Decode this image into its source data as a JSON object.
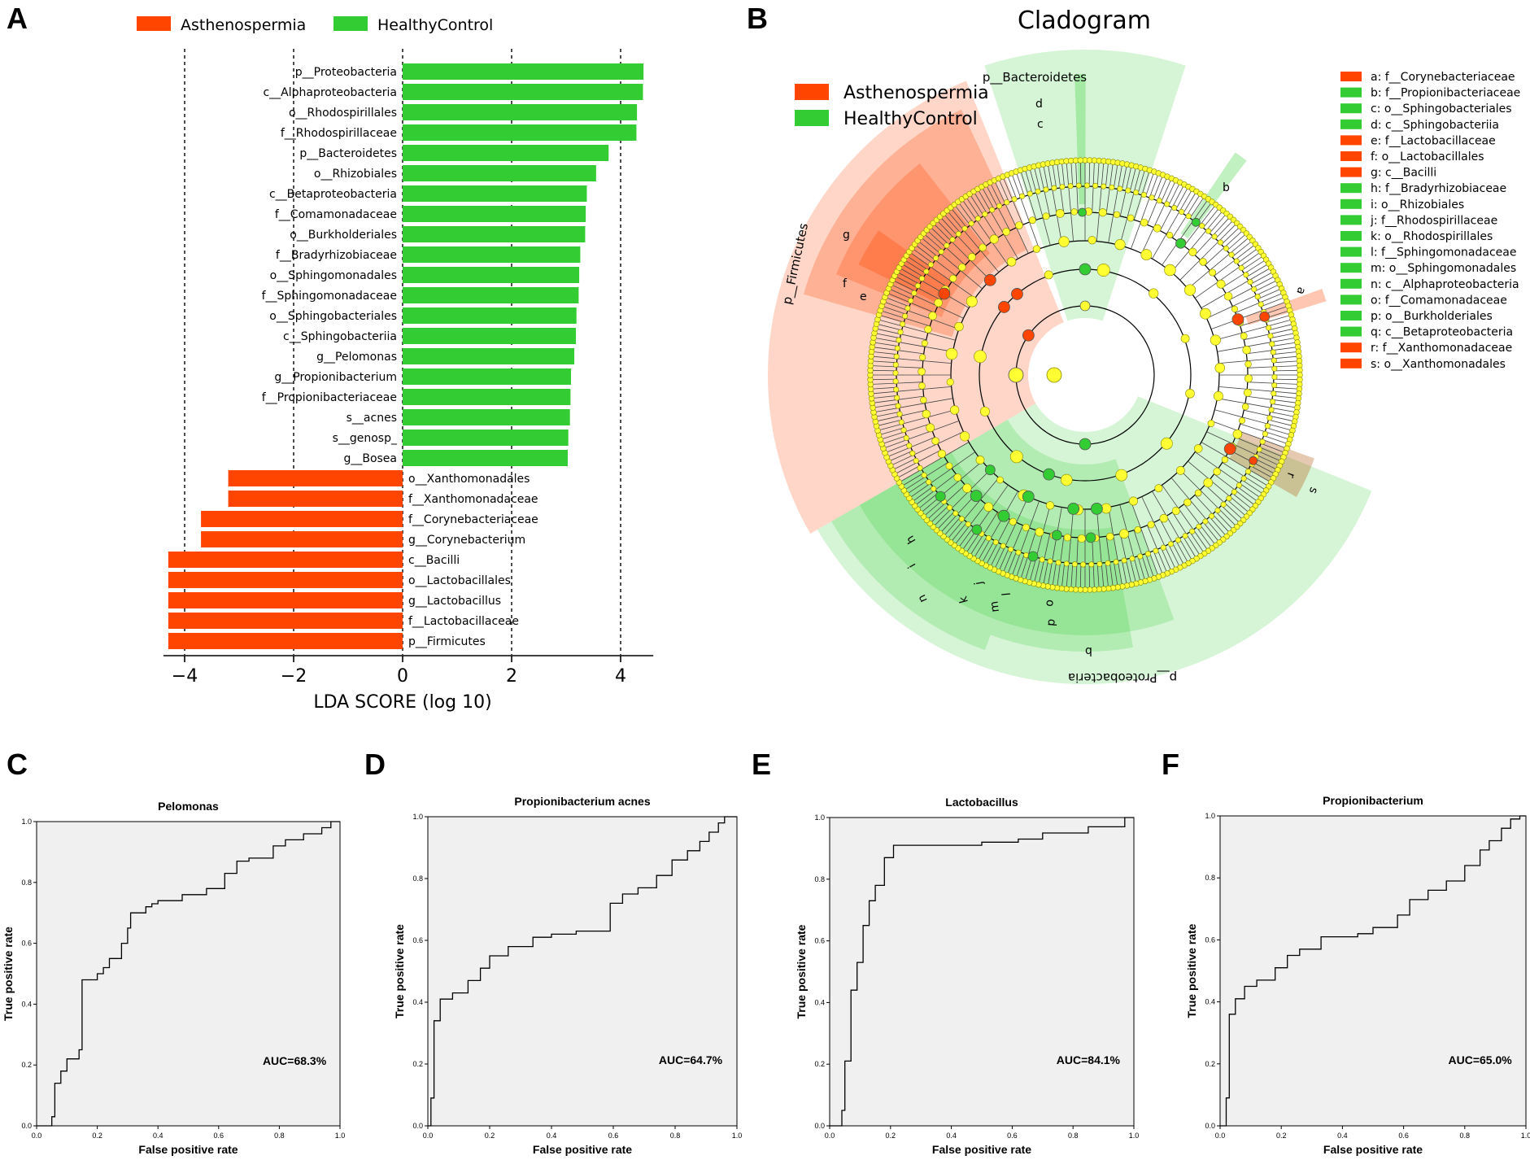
{
  "panel_labels": {
    "a": "A",
    "b": "B",
    "c": "C",
    "d": "D",
    "e": "E",
    "f": "F"
  },
  "colors": {
    "asth": "#ff4500",
    "healthy": "#33cc33",
    "rocfill": "#f0f0f0",
    "node": "#ffff33",
    "grid": "#000000"
  },
  "chart_data": [
    {
      "type": "bar",
      "title": "",
      "xlabel": "LDA SCORE (log 10)",
      "xlim": [
        -4.3,
        4.6
      ],
      "xticks": [
        -4,
        -2,
        0,
        2,
        4
      ],
      "xtick_labels": [
        "−4",
        "−2",
        "0",
        "2",
        "4"
      ],
      "legend": [
        {
          "name": "Asthenospermia",
          "color": "#ff4500"
        },
        {
          "name": "HealthyControl",
          "color": "#33cc33"
        }
      ],
      "series": [
        {
          "name": "HealthyControl",
          "color": "#33cc33",
          "categories": [
            "p__Proteobacteria",
            "c__Alphaproteobacteria",
            "o__Rhodospirillales",
            "f__Rhodospirillaceae",
            "p__Bacteroidetes",
            "o__Rhizobiales",
            "c__Betaproteobacteria",
            "f__Comamonadaceae",
            "o__Burkholderiales",
            "f__Bradyrhizobiaceae",
            "o__Sphingomonadales",
            "f__Sphingomonadaceae",
            "o__Sphingobacteriales",
            "c__Sphingobacteriia",
            "g__Pelomonas",
            "g__Propionibacterium",
            "f__Propionibacteriaceae",
            "s__acnes",
            "s__genosp_",
            "g__Bosea"
          ],
          "values": [
            4.42,
            4.41,
            4.3,
            4.29,
            3.78,
            3.55,
            3.38,
            3.36,
            3.35,
            3.26,
            3.24,
            3.23,
            3.19,
            3.18,
            3.15,
            3.09,
            3.08,
            3.07,
            3.04,
            3.03
          ]
        },
        {
          "name": "Asthenospermia",
          "color": "#ff4500",
          "categories": [
            "o__Xanthomonadales",
            "f__Xanthomonadaceae",
            "f__Corynebacteriaceae",
            "g__Corynebacterium",
            "c__Bacilli",
            "o__Lactobacillales",
            "g__Lactobacillus",
            "f__Lactobacillaceae",
            "p__Firmicutes"
          ],
          "values": [
            -3.2,
            -3.2,
            -3.7,
            -3.7,
            -4.3,
            -4.3,
            -4.3,
            -4.3,
            -4.3
          ]
        }
      ]
    },
    {
      "type": "roc",
      "title": "Pelomonas",
      "xlabel": "False positive rate",
      "ylabel": "True positive rate",
      "xlim": [
        0,
        1
      ],
      "ylim": [
        0,
        1
      ],
      "auc": "AUC=68.3%",
      "ticks": [
        "0.0",
        "0.2",
        "0.4",
        "0.6",
        "0.8",
        "1.0"
      ],
      "x": [
        0,
        0.05,
        0.05,
        0.06,
        0.06,
        0.08,
        0.08,
        0.1,
        0.1,
        0.14,
        0.14,
        0.15,
        0.15,
        0.2,
        0.2,
        0.22,
        0.22,
        0.24,
        0.24,
        0.28,
        0.28,
        0.3,
        0.3,
        0.31,
        0.31,
        0.36,
        0.36,
        0.38,
        0.38,
        0.4,
        0.4,
        0.48,
        0.48,
        0.56,
        0.56,
        0.62,
        0.62,
        0.66,
        0.66,
        0.7,
        0.7,
        0.78,
        0.78,
        0.82,
        0.82,
        0.88,
        0.88,
        0.94,
        0.94,
        0.97,
        0.97,
        1.0
      ],
      "y": [
        0,
        0,
        0.03,
        0.03,
        0.14,
        0.14,
        0.18,
        0.18,
        0.22,
        0.22,
        0.25,
        0.25,
        0.48,
        0.48,
        0.5,
        0.5,
        0.52,
        0.52,
        0.55,
        0.55,
        0.6,
        0.6,
        0.65,
        0.65,
        0.7,
        0.7,
        0.72,
        0.72,
        0.73,
        0.73,
        0.74,
        0.74,
        0.76,
        0.76,
        0.78,
        0.78,
        0.83,
        0.83,
        0.87,
        0.87,
        0.88,
        0.88,
        0.92,
        0.92,
        0.94,
        0.94,
        0.96,
        0.96,
        0.98,
        0.98,
        1.0,
        1.0
      ]
    },
    {
      "type": "roc",
      "title": "Propionibacterium acnes",
      "xlabel": "False positive rate",
      "ylabel": "True positive rate",
      "xlim": [
        0,
        1
      ],
      "ylim": [
        0,
        1
      ],
      "auc": "AUC=64.7%",
      "ticks": [
        "0.0",
        "0.2",
        "0.4",
        "0.6",
        "0.8",
        "1.0"
      ],
      "x": [
        0,
        0.01,
        0.01,
        0.02,
        0.02,
        0.04,
        0.04,
        0.08,
        0.08,
        0.13,
        0.13,
        0.17,
        0.17,
        0.2,
        0.2,
        0.26,
        0.26,
        0.34,
        0.34,
        0.4,
        0.4,
        0.48,
        0.48,
        0.59,
        0.59,
        0.63,
        0.63,
        0.68,
        0.68,
        0.74,
        0.74,
        0.79,
        0.79,
        0.84,
        0.84,
        0.88,
        0.88,
        0.91,
        0.91,
        0.94,
        0.94,
        0.96,
        0.96,
        1.0
      ],
      "y": [
        0,
        0,
        0.09,
        0.09,
        0.34,
        0.34,
        0.41,
        0.41,
        0.43,
        0.43,
        0.47,
        0.47,
        0.51,
        0.51,
        0.55,
        0.55,
        0.58,
        0.58,
        0.61,
        0.61,
        0.62,
        0.62,
        0.63,
        0.63,
        0.72,
        0.72,
        0.75,
        0.75,
        0.77,
        0.77,
        0.81,
        0.81,
        0.86,
        0.86,
        0.89,
        0.89,
        0.92,
        0.92,
        0.95,
        0.95,
        0.98,
        0.98,
        1.0,
        1.0
      ]
    },
    {
      "type": "roc",
      "title": "Lactobacillus",
      "xlabel": "False positive rate",
      "ylabel": "True positive rate",
      "xlim": [
        0,
        1
      ],
      "ylim": [
        0,
        1
      ],
      "auc": "AUC=84.1%",
      "ticks": [
        "0.0",
        "0.2",
        "0.4",
        "0.6",
        "0.8",
        "1.0"
      ],
      "x": [
        0,
        0.04,
        0.04,
        0.05,
        0.05,
        0.07,
        0.07,
        0.09,
        0.09,
        0.11,
        0.11,
        0.13,
        0.13,
        0.15,
        0.15,
        0.18,
        0.18,
        0.21,
        0.21,
        0.5,
        0.5,
        0.62,
        0.62,
        0.7,
        0.7,
        0.85,
        0.85,
        0.97,
        0.97,
        1.0
      ],
      "y": [
        0,
        0,
        0.05,
        0.05,
        0.21,
        0.21,
        0.44,
        0.44,
        0.53,
        0.53,
        0.65,
        0.65,
        0.73,
        0.73,
        0.78,
        0.78,
        0.87,
        0.87,
        0.91,
        0.91,
        0.92,
        0.92,
        0.93,
        0.93,
        0.95,
        0.95,
        0.97,
        0.97,
        1.0,
        1.0
      ]
    },
    {
      "type": "roc",
      "title": "Propionibacterium",
      "xlabel": "False positive rate",
      "ylabel": "True positive rate",
      "xlim": [
        0,
        1
      ],
      "ylim": [
        0,
        1
      ],
      "auc": "AUC=65.0%",
      "ticks": [
        "0.0",
        "0.2",
        "0.4",
        "0.6",
        "0.8",
        "1.0"
      ],
      "x": [
        0,
        0.02,
        0.02,
        0.03,
        0.03,
        0.05,
        0.05,
        0.08,
        0.08,
        0.12,
        0.12,
        0.18,
        0.18,
        0.22,
        0.22,
        0.26,
        0.26,
        0.33,
        0.33,
        0.45,
        0.45,
        0.5,
        0.5,
        0.58,
        0.58,
        0.62,
        0.62,
        0.68,
        0.68,
        0.74,
        0.74,
        0.8,
        0.8,
        0.85,
        0.85,
        0.88,
        0.88,
        0.92,
        0.92,
        0.95,
        0.95,
        0.98,
        0.98,
        1.0
      ],
      "y": [
        0,
        0,
        0.09,
        0.09,
        0.36,
        0.36,
        0.41,
        0.41,
        0.45,
        0.45,
        0.47,
        0.47,
        0.51,
        0.51,
        0.55,
        0.55,
        0.57,
        0.57,
        0.61,
        0.61,
        0.62,
        0.62,
        0.64,
        0.64,
        0.68,
        0.68,
        0.73,
        0.73,
        0.76,
        0.76,
        0.79,
        0.79,
        0.84,
        0.84,
        0.89,
        0.89,
        0.92,
        0.92,
        0.96,
        0.96,
        0.99,
        0.99,
        1.0,
        1.0
      ]
    }
  ],
  "cladogram": {
    "title": "Cladogram",
    "legend": [
      {
        "name": "Asthenospermia",
        "color": "#ff4500"
      },
      {
        "name": "HealthyControl",
        "color": "#33cc33"
      }
    ],
    "keys": [
      {
        "text": "a: f__Corynebacteriaceae",
        "color": "#ff4500"
      },
      {
        "text": "b: f__Propionibacteriaceae",
        "color": "#33cc33"
      },
      {
        "text": "c: o__Sphingobacteriales",
        "color": "#33cc33"
      },
      {
        "text": "d: c__Sphingobacteriia",
        "color": "#33cc33"
      },
      {
        "text": "e: f__Lactobacillaceae",
        "color": "#ff4500"
      },
      {
        "text": "f: o__Lactobacillales",
        "color": "#ff4500"
      },
      {
        "text": "g: c__Bacilli",
        "color": "#ff4500"
      },
      {
        "text": "h: f__Bradyrhizobiaceae",
        "color": "#33cc33"
      },
      {
        "text": "i: o__Rhizobiales",
        "color": "#33cc33"
      },
      {
        "text": "j: f__Rhodospirillaceae",
        "color": "#33cc33"
      },
      {
        "text": "k: o__Rhodospirillales",
        "color": "#33cc33"
      },
      {
        "text": "l: f__Sphingomonadaceae",
        "color": "#33cc33"
      },
      {
        "text": "m: o__Sphingomonadales",
        "color": "#33cc33"
      },
      {
        "text": "n: c__Alphaproteobacteria",
        "color": "#33cc33"
      },
      {
        "text": "o: f__Comamonadaceae",
        "color": "#33cc33"
      },
      {
        "text": "p: o__Burkholderiales",
        "color": "#33cc33"
      },
      {
        "text": "q: c__Betaproteobacteria",
        "color": "#33cc33"
      },
      {
        "text": "r: f__Xanthomonadaceae",
        "color": "#ff4500"
      },
      {
        "text": "s: o__Xanthomonadales",
        "color": "#ff4500"
      }
    ],
    "sectors": {
      "firmicutes": "p__Firmicutes",
      "bacteroidetes": "p__Bacteroidetes",
      "proteobacteria": "p__Proteobacteria"
    },
    "letters": {
      "a": "a",
      "b": "b",
      "c": "c",
      "d": "d",
      "e": "e",
      "f": "f",
      "g": "g",
      "h": "h",
      "i": "i",
      "j": "j",
      "k": "k",
      "l": "l",
      "m": "m",
      "n": "n",
      "o": "o",
      "p": "p",
      "q": "q",
      "r": "r",
      "s": "s"
    }
  }
}
